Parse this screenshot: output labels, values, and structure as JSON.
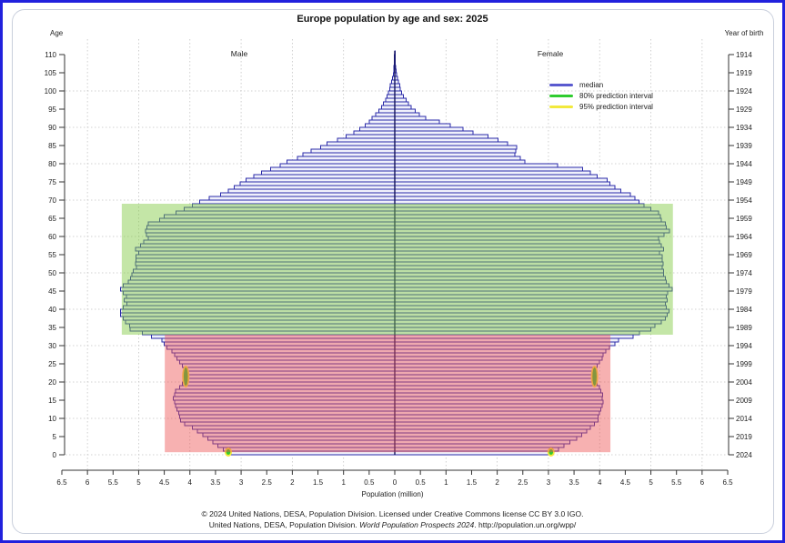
{
  "page": {
    "title": "Europe population by age and sex: 2025"
  },
  "labels": {
    "age_header": "Age",
    "year_header": "Year of birth",
    "male": "Male",
    "female": "Female",
    "x_axis_title": "Population (million)"
  },
  "legend": {
    "items": [
      {
        "label": "median",
        "color": "#5a5acf"
      },
      {
        "label": "80% prediction interval",
        "color": "#2fcc2f"
      },
      {
        "label": "95% prediction interval",
        "color": "#f2e93c"
      }
    ]
  },
  "footer": {
    "line1": "© 2024 United Nations, DESA, Population Division. Licensed under Creative Commons license CC BY 3.0 IGO.",
    "line2_pre": "United Nations, DESA, Population Division. ",
    "line2_italic": "World Population Prospects 2024",
    "line2_post": ". http://population.un.org/wpp/"
  },
  "chart_data": {
    "type": "bar",
    "subtype": "population-pyramid",
    "title": "Europe population by age and sex: 2025",
    "xlabel": "Population (million)",
    "x_axis": {
      "range": [
        -6.5,
        6.5
      ],
      "tick_values": [
        -6.5,
        -6,
        -5.5,
        -5,
        -4.5,
        -4,
        -3.5,
        -3,
        -2.5,
        -2,
        -1.5,
        -1,
        -0.5,
        0,
        0.5,
        1,
        1.5,
        2,
        2.5,
        3,
        3.5,
        4,
        4.5,
        5,
        5.5,
        6,
        6.5
      ],
      "tick_labels": [
        "6.5",
        "6",
        "5.5",
        "5",
        "4.5",
        "4",
        "3.5",
        "3",
        "2.5",
        "2",
        "1.5",
        "1",
        "0.5",
        "0",
        "0.5",
        "1",
        "1.5",
        "2",
        "2.5",
        "3",
        "3.5",
        "4",
        "4.5",
        "5",
        "5.5",
        "6",
        "6.5"
      ]
    },
    "age_axis": {
      "label": "Age",
      "range": [
        0,
        110
      ],
      "ticks": [
        0,
        5,
        10,
        15,
        20,
        25,
        30,
        35,
        40,
        45,
        50,
        55,
        60,
        65,
        70,
        75,
        80,
        85,
        90,
        95,
        100,
        105,
        110
      ]
    },
    "year_axis": {
      "label": "Year of birth",
      "ticks": [
        1914,
        1919,
        1924,
        1929,
        1934,
        1939,
        1944,
        1949,
        1954,
        1959,
        1964,
        1969,
        1974,
        1979,
        1984,
        1989,
        1994,
        1999,
        2004,
        2009,
        2014,
        2019,
        2024
      ]
    },
    "ages_single_year": "0 to 110, one bar per year of age; values estimated from plot, millions",
    "series": [
      {
        "name": "Male",
        "side": "left",
        "values": [
          3.25,
          3.35,
          3.45,
          3.55,
          3.65,
          3.75,
          3.85,
          3.95,
          4.1,
          4.18,
          4.2,
          4.22,
          4.25,
          4.28,
          4.3,
          4.32,
          4.3,
          4.28,
          4.2,
          4.15,
          4.1,
          4.08,
          4.1,
          4.12,
          4.15,
          4.2,
          4.25,
          4.3,
          4.35,
          4.45,
          4.5,
          4.55,
          4.75,
          4.93,
          5.17,
          5.18,
          5.26,
          5.3,
          5.35,
          5.35,
          5.3,
          5.23,
          5.28,
          5.24,
          5.3,
          5.35,
          5.3,
          5.2,
          5.16,
          5.13,
          5.11,
          5.04,
          5.06,
          5.05,
          5.05,
          5.0,
          5.06,
          4.96,
          4.9,
          4.81,
          4.85,
          4.87,
          4.84,
          4.81,
          4.59,
          4.5,
          4.27,
          4.11,
          3.95,
          3.81,
          3.62,
          3.4,
          3.25,
          3.13,
          3.02,
          2.9,
          2.75,
          2.6,
          2.42,
          2.24,
          2.1,
          1.9,
          1.79,
          1.63,
          1.45,
          1.32,
          1.12,
          0.95,
          0.8,
          0.68,
          0.58,
          0.5,
          0.44,
          0.37,
          0.31,
          0.26,
          0.22,
          0.18,
          0.15,
          0.12,
          0.1,
          0.09,
          0.06,
          0.04,
          0.03,
          0.02,
          0.015,
          0.01,
          0.008,
          0.005,
          0.003
        ]
      },
      {
        "name": "Female",
        "side": "right",
        "values": [
          3.05,
          3.2,
          3.3,
          3.42,
          3.55,
          3.65,
          3.75,
          3.82,
          3.9,
          3.97,
          3.97,
          4.0,
          4.02,
          4.05,
          4.07,
          4.05,
          4.06,
          4.02,
          4.0,
          3.95,
          3.9,
          3.88,
          3.9,
          3.92,
          3.95,
          4.0,
          4.05,
          4.07,
          4.12,
          4.19,
          4.3,
          4.37,
          4.65,
          4.78,
          5.0,
          5.08,
          5.2,
          5.28,
          5.32,
          5.35,
          5.3,
          5.28,
          5.32,
          5.3,
          5.33,
          5.42,
          5.35,
          5.3,
          5.28,
          5.25,
          5.25,
          5.22,
          5.24,
          5.22,
          5.22,
          5.17,
          5.25,
          5.2,
          5.17,
          5.15,
          5.26,
          5.36,
          5.3,
          5.28,
          5.2,
          5.19,
          5.15,
          5.0,
          4.87,
          4.77,
          4.69,
          4.6,
          4.41,
          4.3,
          4.2,
          4.15,
          3.95,
          3.82,
          3.67,
          3.18,
          2.54,
          2.45,
          2.34,
          2.36,
          2.38,
          2.2,
          2.02,
          1.82,
          1.53,
          1.33,
          1.08,
          0.87,
          0.6,
          0.48,
          0.4,
          0.32,
          0.27,
          0.22,
          0.17,
          0.13,
          0.11,
          0.1,
          0.07,
          0.05,
          0.035,
          0.025,
          0.018,
          0.012,
          0.008,
          0.005,
          0.003
        ]
      }
    ],
    "highlights": [
      {
        "name": "green-box",
        "age_from": 33,
        "age_to": 69,
        "male_reach": 5.33,
        "female_reach": 5.43,
        "color": "rgba(125,200,60,0.45)"
      },
      {
        "name": "red-box",
        "age_from": 0.7,
        "age_to": 33,
        "male_reach": 4.49,
        "female_reach": 4.21,
        "color": "rgba(238,82,82,0.45)"
      }
    ],
    "interval_marks": [
      {
        "side": "male",
        "age_from": 19,
        "age_to": 24,
        "value": 4.08
      },
      {
        "side": "female",
        "age_from": 19,
        "age_to": 24,
        "value": 3.9
      },
      {
        "side": "male",
        "age_from": 0,
        "age_to": 1.5,
        "value": 3.25
      },
      {
        "side": "female",
        "age_from": 0,
        "age_to": 1.5,
        "value": 3.05
      }
    ],
    "legend": [
      "median",
      "80% prediction interval",
      "95% prediction interval"
    ],
    "legend_position": "upper-right-inside",
    "grid": true,
    "colors": {
      "bar_border": "#2a2aa8",
      "bar_fill": "#f0f1fb",
      "center_line": "#12125a",
      "grid": "#c4c4c4",
      "axis": "#333333",
      "interval_80": "#2fcc2f",
      "interval_95": "#f2e93c"
    }
  }
}
